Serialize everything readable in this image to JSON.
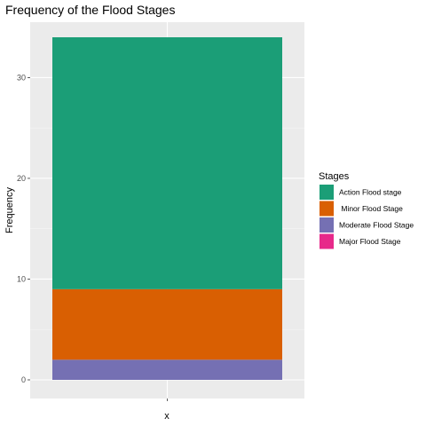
{
  "chart_data": {
    "type": "bar",
    "stacked": true,
    "title": "Frequency of the Flood Stages",
    "xlabel": "x",
    "ylabel": "Frequency",
    "categories": [
      ""
    ],
    "ylim": [
      0,
      34
    ],
    "yticks": [
      0,
      10,
      20,
      30
    ],
    "grid": true,
    "legend": {
      "title": "Stages",
      "placement": "right"
    },
    "series": [
      {
        "name": "Action Flood stage",
        "values": [
          25
        ],
        "color": "#1b9e77"
      },
      {
        "name": " Minor Flood Stage",
        "values": [
          7
        ],
        "color": "#d95f02"
      },
      {
        "name": "Moderate Flood Stage",
        "values": [
          2
        ],
        "color": "#7570b3"
      },
      {
        "name": "Major Flood Stage",
        "values": [
          0
        ],
        "color": "#e7298a"
      }
    ]
  }
}
